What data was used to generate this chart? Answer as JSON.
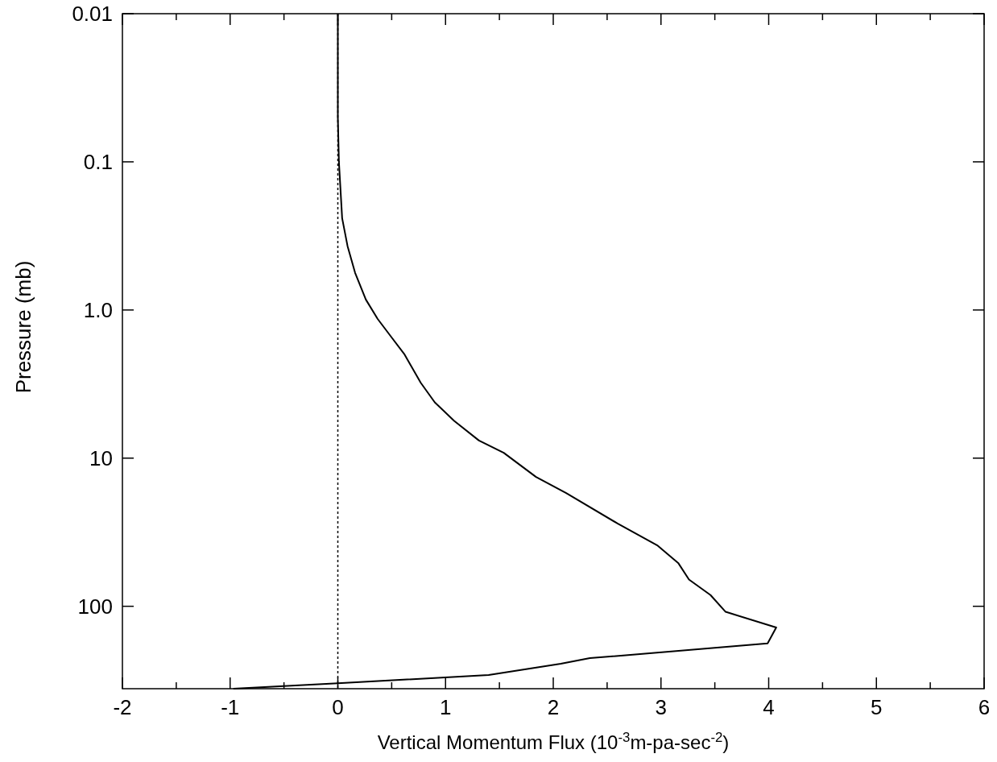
{
  "chart_data": {
    "type": "line",
    "xlabel": "Vertical Momentum Flux (10$^{-3}$m-pa-sec$^{-2}$)",
    "ylabel": "Pressure (mb)",
    "xlim": [
      -2,
      6
    ],
    "ylim": [
      360,
      0.01
    ],
    "log": "y",
    "grid": false,
    "line_style": "solid",
    "marker": "none",
    "xticks": [
      -2,
      {
        "value": -1.5,
        "label": null
      },
      -1,
      {
        "value": -0.5,
        "label": null
      },
      0,
      {
        "value": 0.5,
        "label": null
      },
      1,
      {
        "value": 1.5,
        "label": null
      },
      2,
      {
        "value": 2.5,
        "label": null
      },
      3,
      {
        "value": 3.5,
        "label": null
      },
      4,
      {
        "value": 4.5,
        "label": null
      },
      5,
      {
        "value": 5.5,
        "label": null
      },
      6
    ],
    "yticks": [
      0.01,
      0.1,
      {
        "value": 1,
        "label": "1.0"
      },
      10,
      100
    ],
    "ref_lines": [
      {
        "axis": "x",
        "value": 0,
        "line_style": "dotted",
        "color": "#000000"
      }
    ],
    "series": [
      {
        "color": "#000000",
        "x": [
          0,
          0,
          0.01,
          0.04,
          0.09,
          0.16,
          0.26,
          0.37,
          0.49,
          0.62,
          0.77,
          0.9,
          1.08,
          1.31,
          1.54,
          1.84,
          2.12,
          2.6,
          2.97,
          3.16,
          3.26,
          3.46,
          3.6,
          4.07,
          3.99,
          2.34,
          2.07,
          1.4,
          0,
          -0.97
        ],
        "values": [
          0.01,
          0.05,
          0.1,
          0.24,
          0.37,
          0.56,
          0.85,
          1.15,
          1.5,
          2,
          3.1,
          4.2,
          5.6,
          7.6,
          9.2,
          13.4,
          17.2,
          27.7,
          39,
          51,
          66,
          84,
          109,
          139,
          178,
          224,
          244,
          291,
          331,
          360
        ]
      }
    ]
  }
}
